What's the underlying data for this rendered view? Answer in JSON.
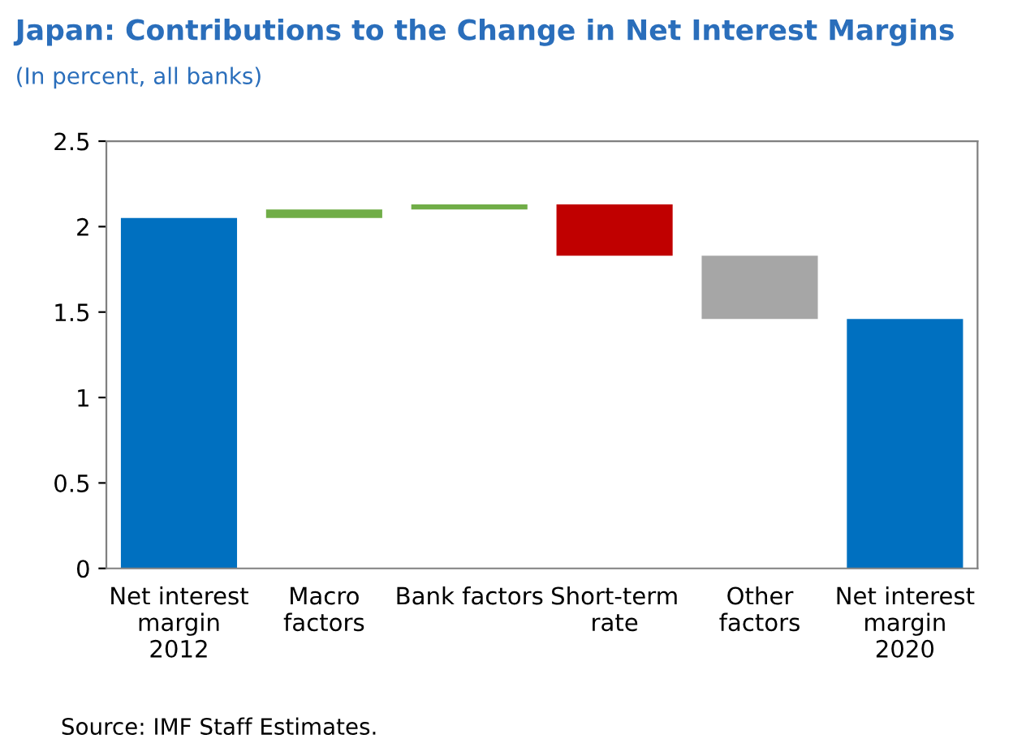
{
  "chart_data": {
    "type": "bar",
    "title": "Japan: Contributions to the Change in Net Interest Margins",
    "subtitle": "(In percent, all banks)",
    "categories": [
      "Net interest\nmargin\n2012",
      "Macro\nfactors",
      "Bank factors",
      "Short-term\nrate",
      "Other\nfactors",
      "Net interest\nmargin\n2020"
    ],
    "values": [
      2.05,
      0.05,
      0.03,
      -0.3,
      -0.37,
      1.46
    ],
    "base": [
      0,
      2.05,
      2.1,
      2.13,
      1.83,
      0
    ],
    "colors": [
      "#0070c0",
      "#70ad47",
      "#70ad47",
      "#c00000",
      "#a6a6a6",
      "#0070c0"
    ],
    "ylim": [
      0,
      2.5
    ],
    "yticks": [
      0,
      0.5,
      1,
      1.5,
      2,
      2.5
    ],
    "grid": false,
    "annotations": [
      "Source: IMF Staff Estimates."
    ]
  }
}
